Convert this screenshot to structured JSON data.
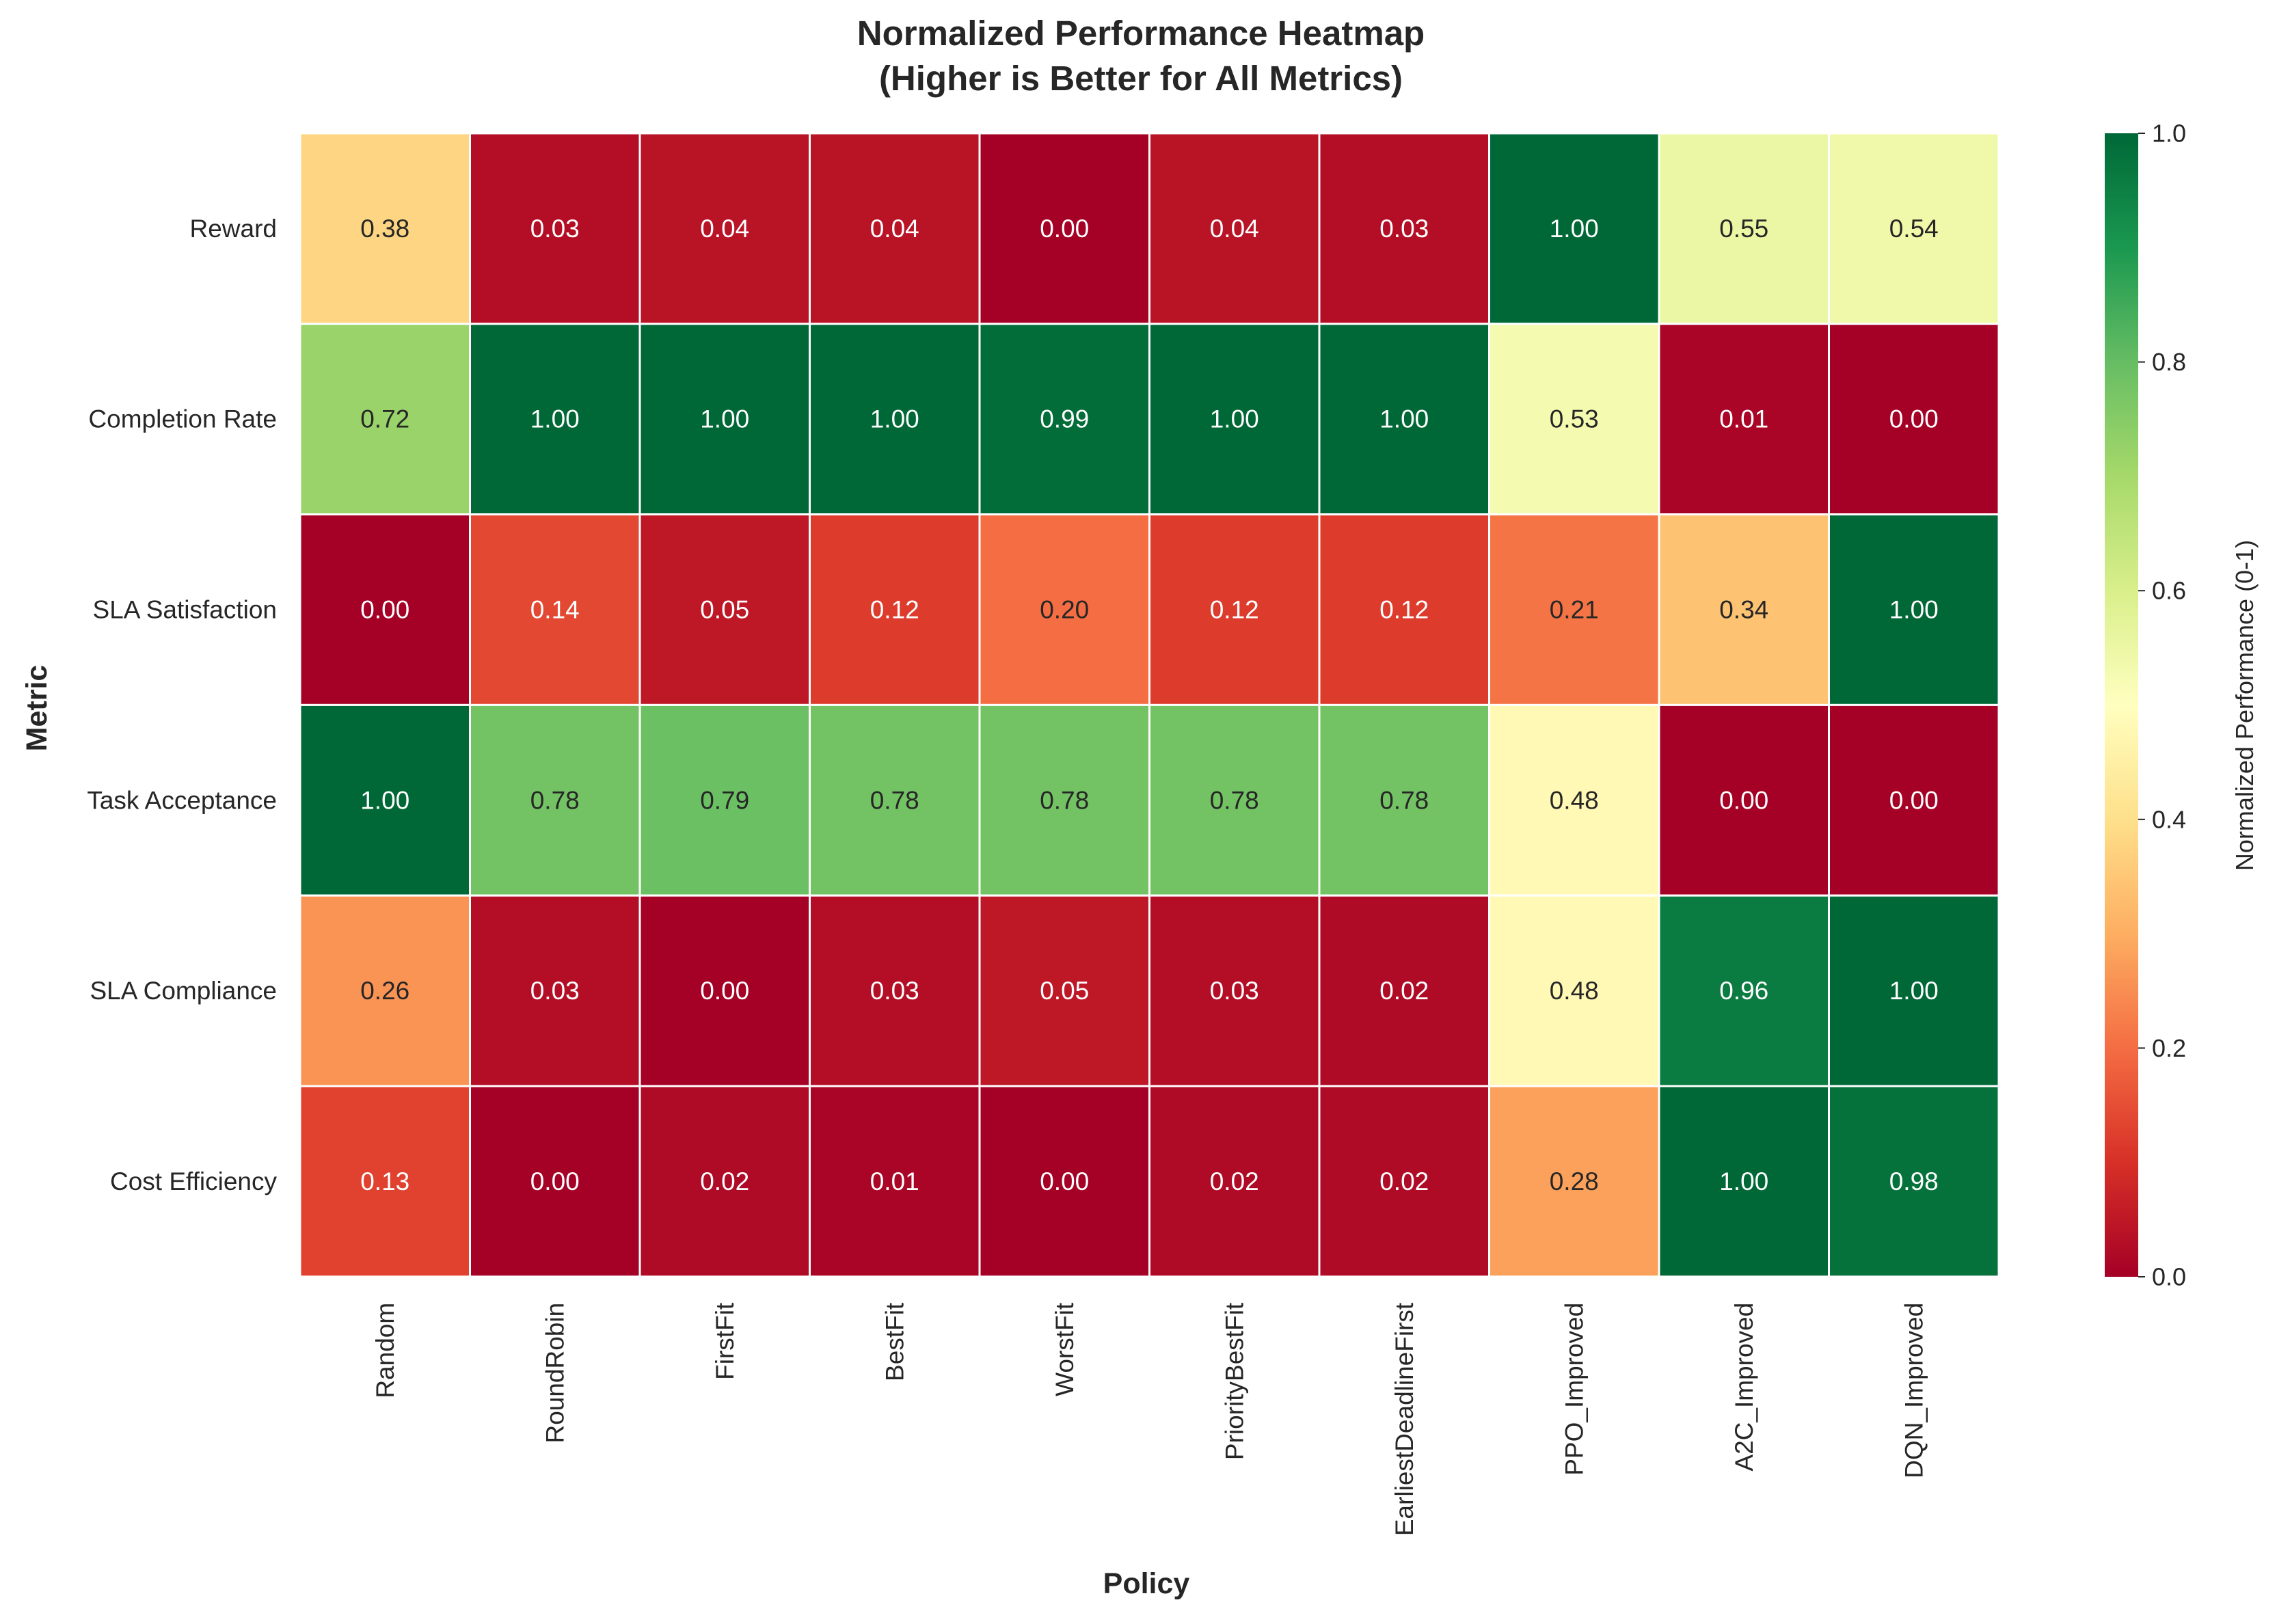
{
  "chart_data": {
    "type": "heatmap",
    "title": "Normalized Performance Heatmap\n(Higher is Better for All Metrics)",
    "xlabel": "Policy",
    "ylabel": "Metric",
    "x_categories": [
      "Random",
      "RoundRobin",
      "FirstFit",
      "BestFit",
      "WorstFit",
      "PriorityBestFit",
      "EarliestDeadlineFirst",
      "PPO_Improved",
      "A2C_Improved",
      "DQN_Improved"
    ],
    "y_categories": [
      "Reward",
      "Completion Rate",
      "SLA Satisfaction",
      "Task Acceptance",
      "SLA Compliance",
      "Cost Efficiency"
    ],
    "values": [
      [
        0.38,
        0.03,
        0.04,
        0.04,
        0.0,
        0.04,
        0.03,
        1.0,
        0.55,
        0.54
      ],
      [
        0.72,
        1.0,
        1.0,
        1.0,
        0.99,
        1.0,
        1.0,
        0.53,
        0.01,
        0.0
      ],
      [
        0.0,
        0.14,
        0.05,
        0.12,
        0.2,
        0.12,
        0.12,
        0.21,
        0.34,
        1.0
      ],
      [
        1.0,
        0.78,
        0.79,
        0.78,
        0.78,
        0.78,
        0.78,
        0.48,
        0.0,
        0.0
      ],
      [
        0.26,
        0.03,
        0.0,
        0.03,
        0.05,
        0.03,
        0.02,
        0.48,
        0.96,
        1.0
      ],
      [
        0.13,
        0.0,
        0.02,
        0.01,
        0.0,
        0.02,
        0.02,
        0.28,
        1.0,
        0.98
      ]
    ],
    "value_format": "0.00",
    "colormap": "RdYlGn",
    "colormap_stops": [
      "#a50026",
      "#d73027",
      "#f46d43",
      "#fdae61",
      "#fee08b",
      "#ffffbf",
      "#d9ef8b",
      "#a6d96a",
      "#66bd63",
      "#1a9850",
      "#006837"
    ],
    "vmin": 0.0,
    "vmax": 1.0,
    "cell_border_color": "#ffffff",
    "colorbar": {
      "label": "Normalized Performance (0-1)",
      "ticks": [
        "0.0",
        "0.2",
        "0.4",
        "0.6",
        "0.8",
        "1.0"
      ]
    }
  }
}
